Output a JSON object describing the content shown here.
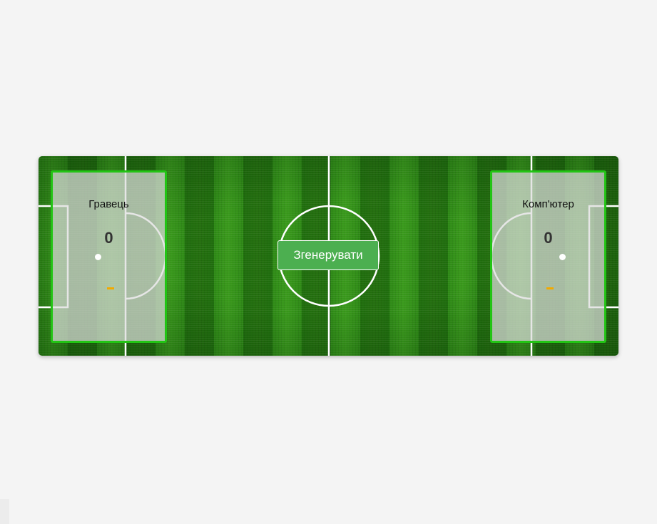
{
  "player": {
    "name": "Гравець",
    "score": "0"
  },
  "computer": {
    "name": "Комп'ютер",
    "score": "0"
  },
  "generate_button": {
    "label": "Згенерувати"
  },
  "colors": {
    "background": "#f4f4f4",
    "panel_border": "#22c414",
    "button": "#4caf50",
    "indicator_dash": "#f2a900"
  }
}
